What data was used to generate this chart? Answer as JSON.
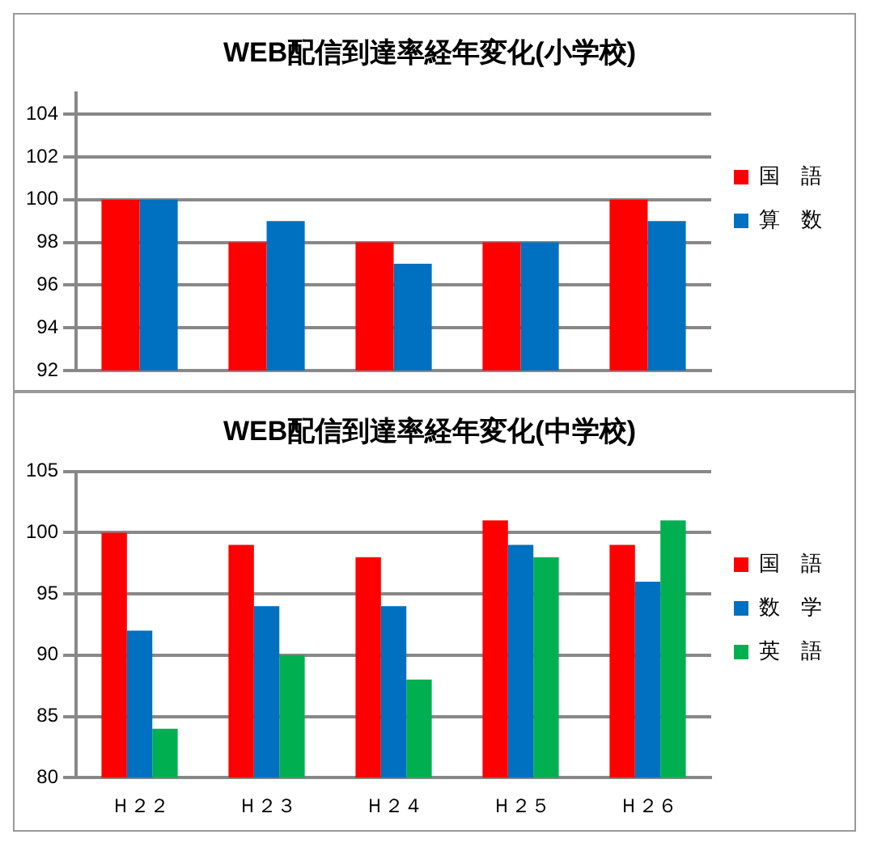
{
  "chart_data": [
    {
      "type": "bar",
      "title": "WEB配信到達率経年変化(小学校)",
      "categories": [
        null,
        null,
        null,
        null,
        null
      ],
      "series": [
        {
          "name": "国　語",
          "color": "#ff0000",
          "values": [
            100,
            98,
            98,
            98,
            100
          ]
        },
        {
          "name": "算　数",
          "color": "#0070c0",
          "values": [
            100,
            99,
            97,
            98,
            99
          ]
        }
      ],
      "ylim": [
        92,
        105
      ],
      "yticks": [
        92,
        94,
        96,
        98,
        100,
        102,
        104
      ],
      "grid": "y",
      "legend": "right",
      "tick_labels": "y"
    },
    {
      "type": "bar",
      "title": "WEB配信到達率経年変化(中学校)",
      "categories": [
        "Ｈ２２",
        "Ｈ２３",
        "Ｈ２４",
        "Ｈ２５",
        "Ｈ２６"
      ],
      "series": [
        {
          "name": "国　語",
          "color": "#ff0000",
          "values": [
            100,
            99,
            98,
            101,
            99
          ]
        },
        {
          "name": "数　学",
          "color": "#0070c0",
          "values": [
            92,
            94,
            94,
            99,
            96
          ]
        },
        {
          "name": "英　語",
          "color": "#00b050",
          "values": [
            84,
            90,
            88,
            98,
            101
          ]
        }
      ],
      "ylim": [
        80,
        105
      ],
      "yticks": [
        80,
        85,
        90,
        95,
        100,
        105
      ],
      "grid": "y",
      "legend": "right"
    }
  ]
}
